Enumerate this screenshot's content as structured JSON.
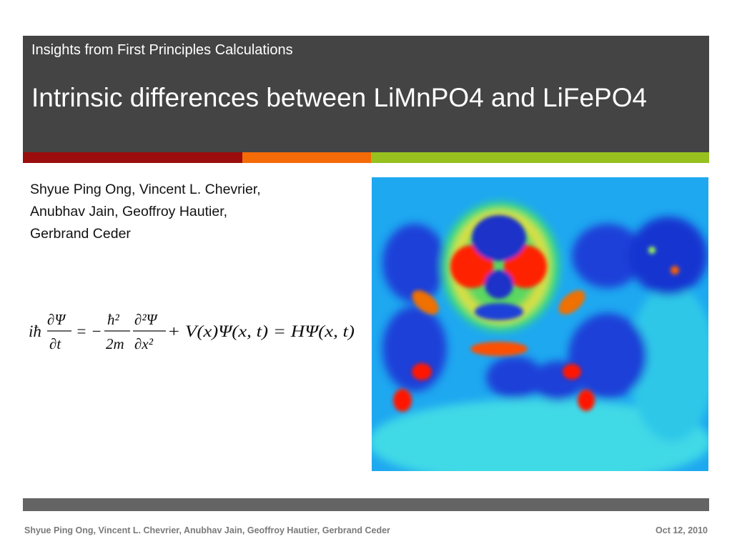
{
  "slide": {
    "subtitle": "Insights from First Principles Calculations",
    "title": "Intrinsic differences between LiMnPO4 and LiFePO4",
    "authors": [
      "Shyue Ping Ong, Vincent L. Chevrier,",
      "Anubhav Jain, Geoffroy Hautier,",
      "Gerbrand Ceder"
    ],
    "equation": {
      "lhs_prefix": "iħ",
      "lhs_num": "∂Ψ",
      "lhs_den": "∂t",
      "eq1": "= −",
      "c_num": "ħ²",
      "c_den": "2m",
      "d_num": "∂²Ψ",
      "d_den": "∂x²",
      "rest": "+ V(x)Ψ(x, t) = HΨ(x, t)"
    }
  },
  "footer": {
    "authors": "Shyue Ping Ong, Vincent L. Chevrier, Anubhav Jain, Geoffroy Hautier,  Gerbrand Ceder",
    "date": "Oct 12, 2010"
  },
  "colors": {
    "header_bg": "#444444",
    "stripe_red": "#9b0d0d",
    "stripe_orange": "#f46b08",
    "stripe_green": "#97c11f",
    "footer_bar": "#646464"
  }
}
